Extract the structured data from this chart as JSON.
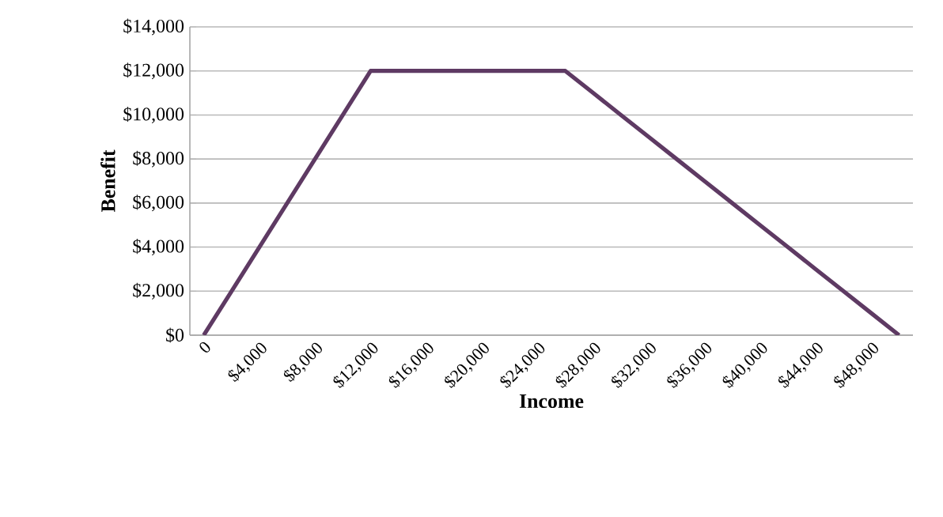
{
  "chart_data": {
    "type": "line",
    "xlabel": "Income",
    "ylabel": "Benefit",
    "categories": [
      "0",
      null,
      "$4,000",
      null,
      "$8,000",
      null,
      "$12,000",
      null,
      "$16,000",
      null,
      "$20,000",
      null,
      "$24,000",
      null,
      "$28,000",
      null,
      "$32,000",
      null,
      "$36,000",
      null,
      "$40,000",
      null,
      "$44,000",
      null,
      "$48,000",
      null
    ],
    "series": [
      {
        "color": "#5e3a63",
        "values": [
          0,
          2000,
          4000,
          6000,
          8000,
          10000,
          12000,
          12000,
          12000,
          12000,
          12000,
          12000,
          12000,
          12000,
          11000,
          10000,
          9000,
          8000,
          7000,
          6000,
          5000,
          4000,
          3000,
          2000,
          1000,
          0
        ]
      }
    ],
    "ylim": [
      0,
      14000
    ],
    "yticks": [
      {
        "value": 0,
        "label": "$0"
      },
      {
        "value": 2000,
        "label": "$2,000"
      },
      {
        "value": 4000,
        "label": "$4,000"
      },
      {
        "value": 6000,
        "label": "$6,000"
      },
      {
        "value": 8000,
        "label": "$8,000"
      },
      {
        "value": 10000,
        "label": "$10,000"
      },
      {
        "value": 12000,
        "label": "$12,000"
      },
      {
        "value": 14000,
        "label": "$14,000"
      }
    ],
    "grid": "y",
    "legend": false,
    "marker": "none",
    "line_style": "solid"
  }
}
